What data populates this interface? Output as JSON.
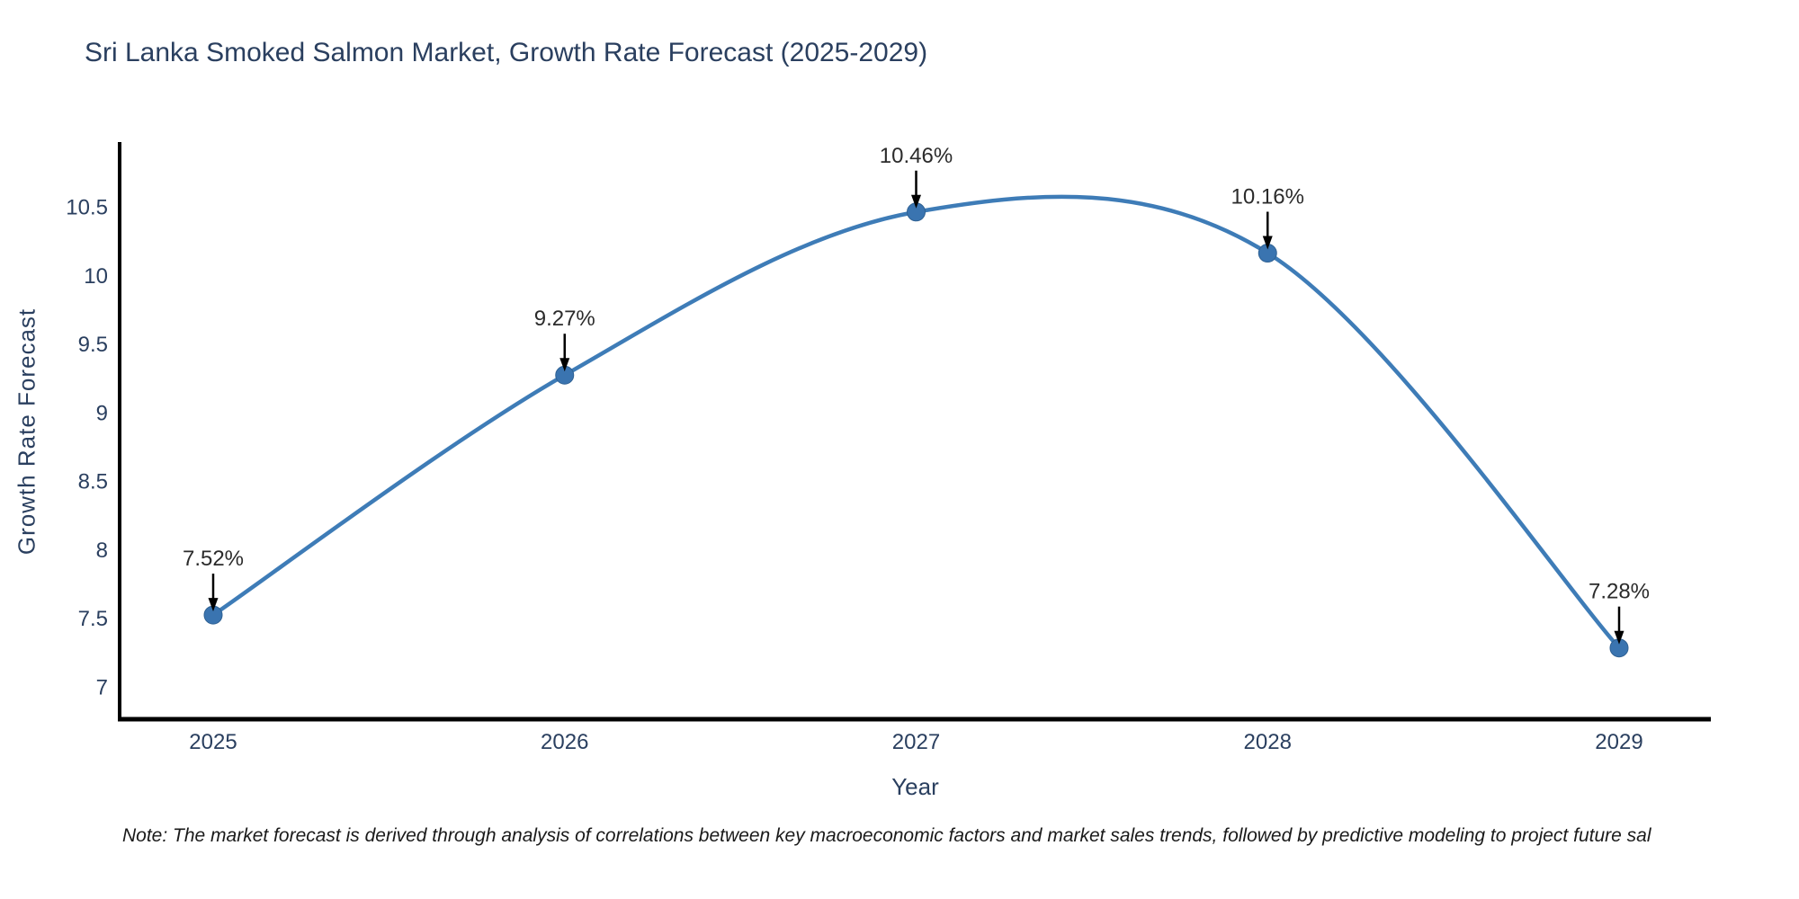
{
  "title": "Sri Lanka Smoked Salmon Market, Growth Rate Forecast (2025-2029)",
  "note": "Note: The market forecast is derived through analysis of correlations between key macroeconomic factors and market sales trends, followed by predictive modeling to project future sal",
  "chart_data": {
    "type": "line",
    "title": "Sri Lanka Smoked Salmon Market, Growth Rate Forecast (2025-2029)",
    "xlabel": "Year",
    "ylabel": "Growth Rate Forecast",
    "categories": [
      "2025",
      "2026",
      "2027",
      "2028",
      "2029"
    ],
    "series": [
      {
        "name": "Growth Rate Forecast",
        "values": [
          7.52,
          9.27,
          10.46,
          10.16,
          7.28
        ]
      }
    ],
    "point_labels": [
      "7.52%",
      "9.27%",
      "10.46%",
      "10.16%",
      "7.28%"
    ],
    "yticks": [
      10.5,
      10,
      9.5,
      9,
      8.5,
      8,
      7.5,
      7
    ],
    "ylim": [
      6.76,
      10.97
    ],
    "line_shape": "spline",
    "grid": false,
    "legend": false,
    "colors": {
      "line": "#3e7cb7",
      "marker": "#3a74b0",
      "marker_edge": "#2f6193",
      "axis": "#000000",
      "title_text": "#2a3f5f",
      "tick_text": "#2a3f5f",
      "annotation_text": "#2b2b2b",
      "annotation_arrow": "#000000",
      "note_text": "#1a1a1a"
    }
  }
}
